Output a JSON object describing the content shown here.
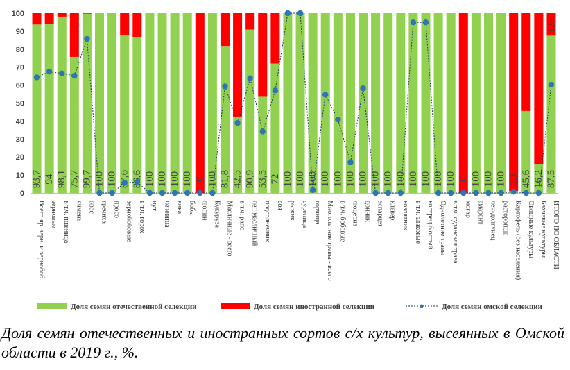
{
  "chart_data": {
    "type": "bar",
    "stacked": true,
    "categories": [
      "Всего яр. зерн. и зернобоб.",
      "зерновые",
      "в т.ч. пшеница",
      "ячмень",
      "овес",
      "гречиха",
      "просо",
      "зернобобовые",
      "в т.ч. горох",
      "нут",
      "чечевица",
      "вика",
      "бобы",
      "люпин",
      "Кукуруза",
      "Масличные - всего",
      "в т.ч. рапс",
      "лен масличный",
      "подсолнечник",
      "соя",
      "рыжик",
      "сурепица",
      "горчица",
      "Многолетние травы - всего",
      "в т.ч. бобовые",
      "люцерна",
      "донник",
      "эспарцет",
      "клевер",
      "козлятник",
      "в т.ч. злаковые",
      "кострец б/остый",
      "Однолетние травы",
      "в т.ч. суданская трава",
      "могар",
      "амарант",
      "лен-долгунец",
      "расторопша",
      "Картофель (без населения)",
      "Овощные культуры",
      "Бахчевые культуры",
      "ИТОГО ПО ОБЛАСТИ"
    ],
    "series": [
      {
        "name": "Доля семян отечественной селекции",
        "color": "#92d050",
        "values": [
          93.7,
          94,
          98.1,
          75.7,
          99.7,
          100,
          100,
          87.6,
          86.6,
          100,
          100,
          100,
          100,
          0,
          100,
          81.8,
          42.5,
          90.9,
          53.5,
          72,
          100,
          100,
          100,
          100,
          100,
          100,
          100,
          100,
          100,
          100,
          100,
          100,
          100,
          100,
          0,
          100,
          100,
          100,
          1.1,
          45.6,
          16.2,
          87.5
        ]
      },
      {
        "name": "Доля семян иностранной селекции",
        "color": "#ff0000",
        "values": [
          6.3,
          6,
          1.9,
          24.3,
          0.3,
          0,
          0,
          12.4,
          13.4,
          0,
          0,
          0,
          0,
          100,
          0,
          18.2,
          57.5,
          9.1,
          46.5,
          28,
          0,
          0,
          0,
          0,
          0,
          0,
          0,
          0,
          0,
          0,
          0,
          0,
          0,
          0,
          100,
          0,
          0,
          0,
          98.9,
          54.4,
          83.8,
          12.5
        ]
      },
      {
        "name": "Доля семян омской селекции",
        "color": "#1f3864",
        "type": "line",
        "values": [
          64.3,
          67.5,
          66.5,
          65.2,
          85.7,
          0,
          0,
          5.6,
          6.1,
          0,
          0,
          0,
          0,
          0,
          0,
          59.3,
          38.9,
          63.8,
          34.2,
          57,
          100,
          100,
          1.6,
          54.6,
          40.9,
          17.1,
          58.2,
          0,
          0,
          0,
          94.9,
          94.9,
          0,
          0,
          0,
          0,
          0,
          0,
          0.7,
          0,
          0,
          60.2
        ]
      }
    ],
    "data_labels": [
      "93,7",
      "94",
      "98,1",
      "75,7",
      "99,7",
      "100",
      "100",
      "87,6",
      "86,6",
      "100",
      "100",
      "100",
      "100",
      "0",
      "100",
      "81,8",
      "42,5",
      "90,9",
      "53,5",
      "72",
      "100",
      "100",
      "100",
      "100",
      "100",
      "100",
      "100",
      "100",
      "100",
      "100",
      "100",
      "100",
      "100",
      "100",
      "0",
      "100",
      "100",
      "100",
      "1,1",
      "45,6",
      "16,2",
      "87,5"
    ],
    "top_labels": [
      "",
      "",
      "",
      "",
      "",
      "",
      "",
      "",
      "",
      "",
      "",
      "",
      "",
      "",
      "",
      "",
      "",
      "",
      "",
      "",
      "",
      "",
      "",
      "",
      "",
      "",
      "",
      "",
      "",
      "",
      "",
      "",
      "",
      "",
      "",
      "",
      "",
      "",
      "",
      "",
      "",
      "12,5"
    ],
    "ylim": [
      0,
      100
    ],
    "yticks": [
      "0",
      "10",
      "20",
      "30",
      "40",
      "50",
      "60",
      "70",
      "80",
      "90",
      "100"
    ],
    "grid": false,
    "legend_position": "bottom"
  },
  "caption": "Доля семян отечественных и иностранных сортов с/х культур, высеянных в Омской области в 2019 г., %."
}
